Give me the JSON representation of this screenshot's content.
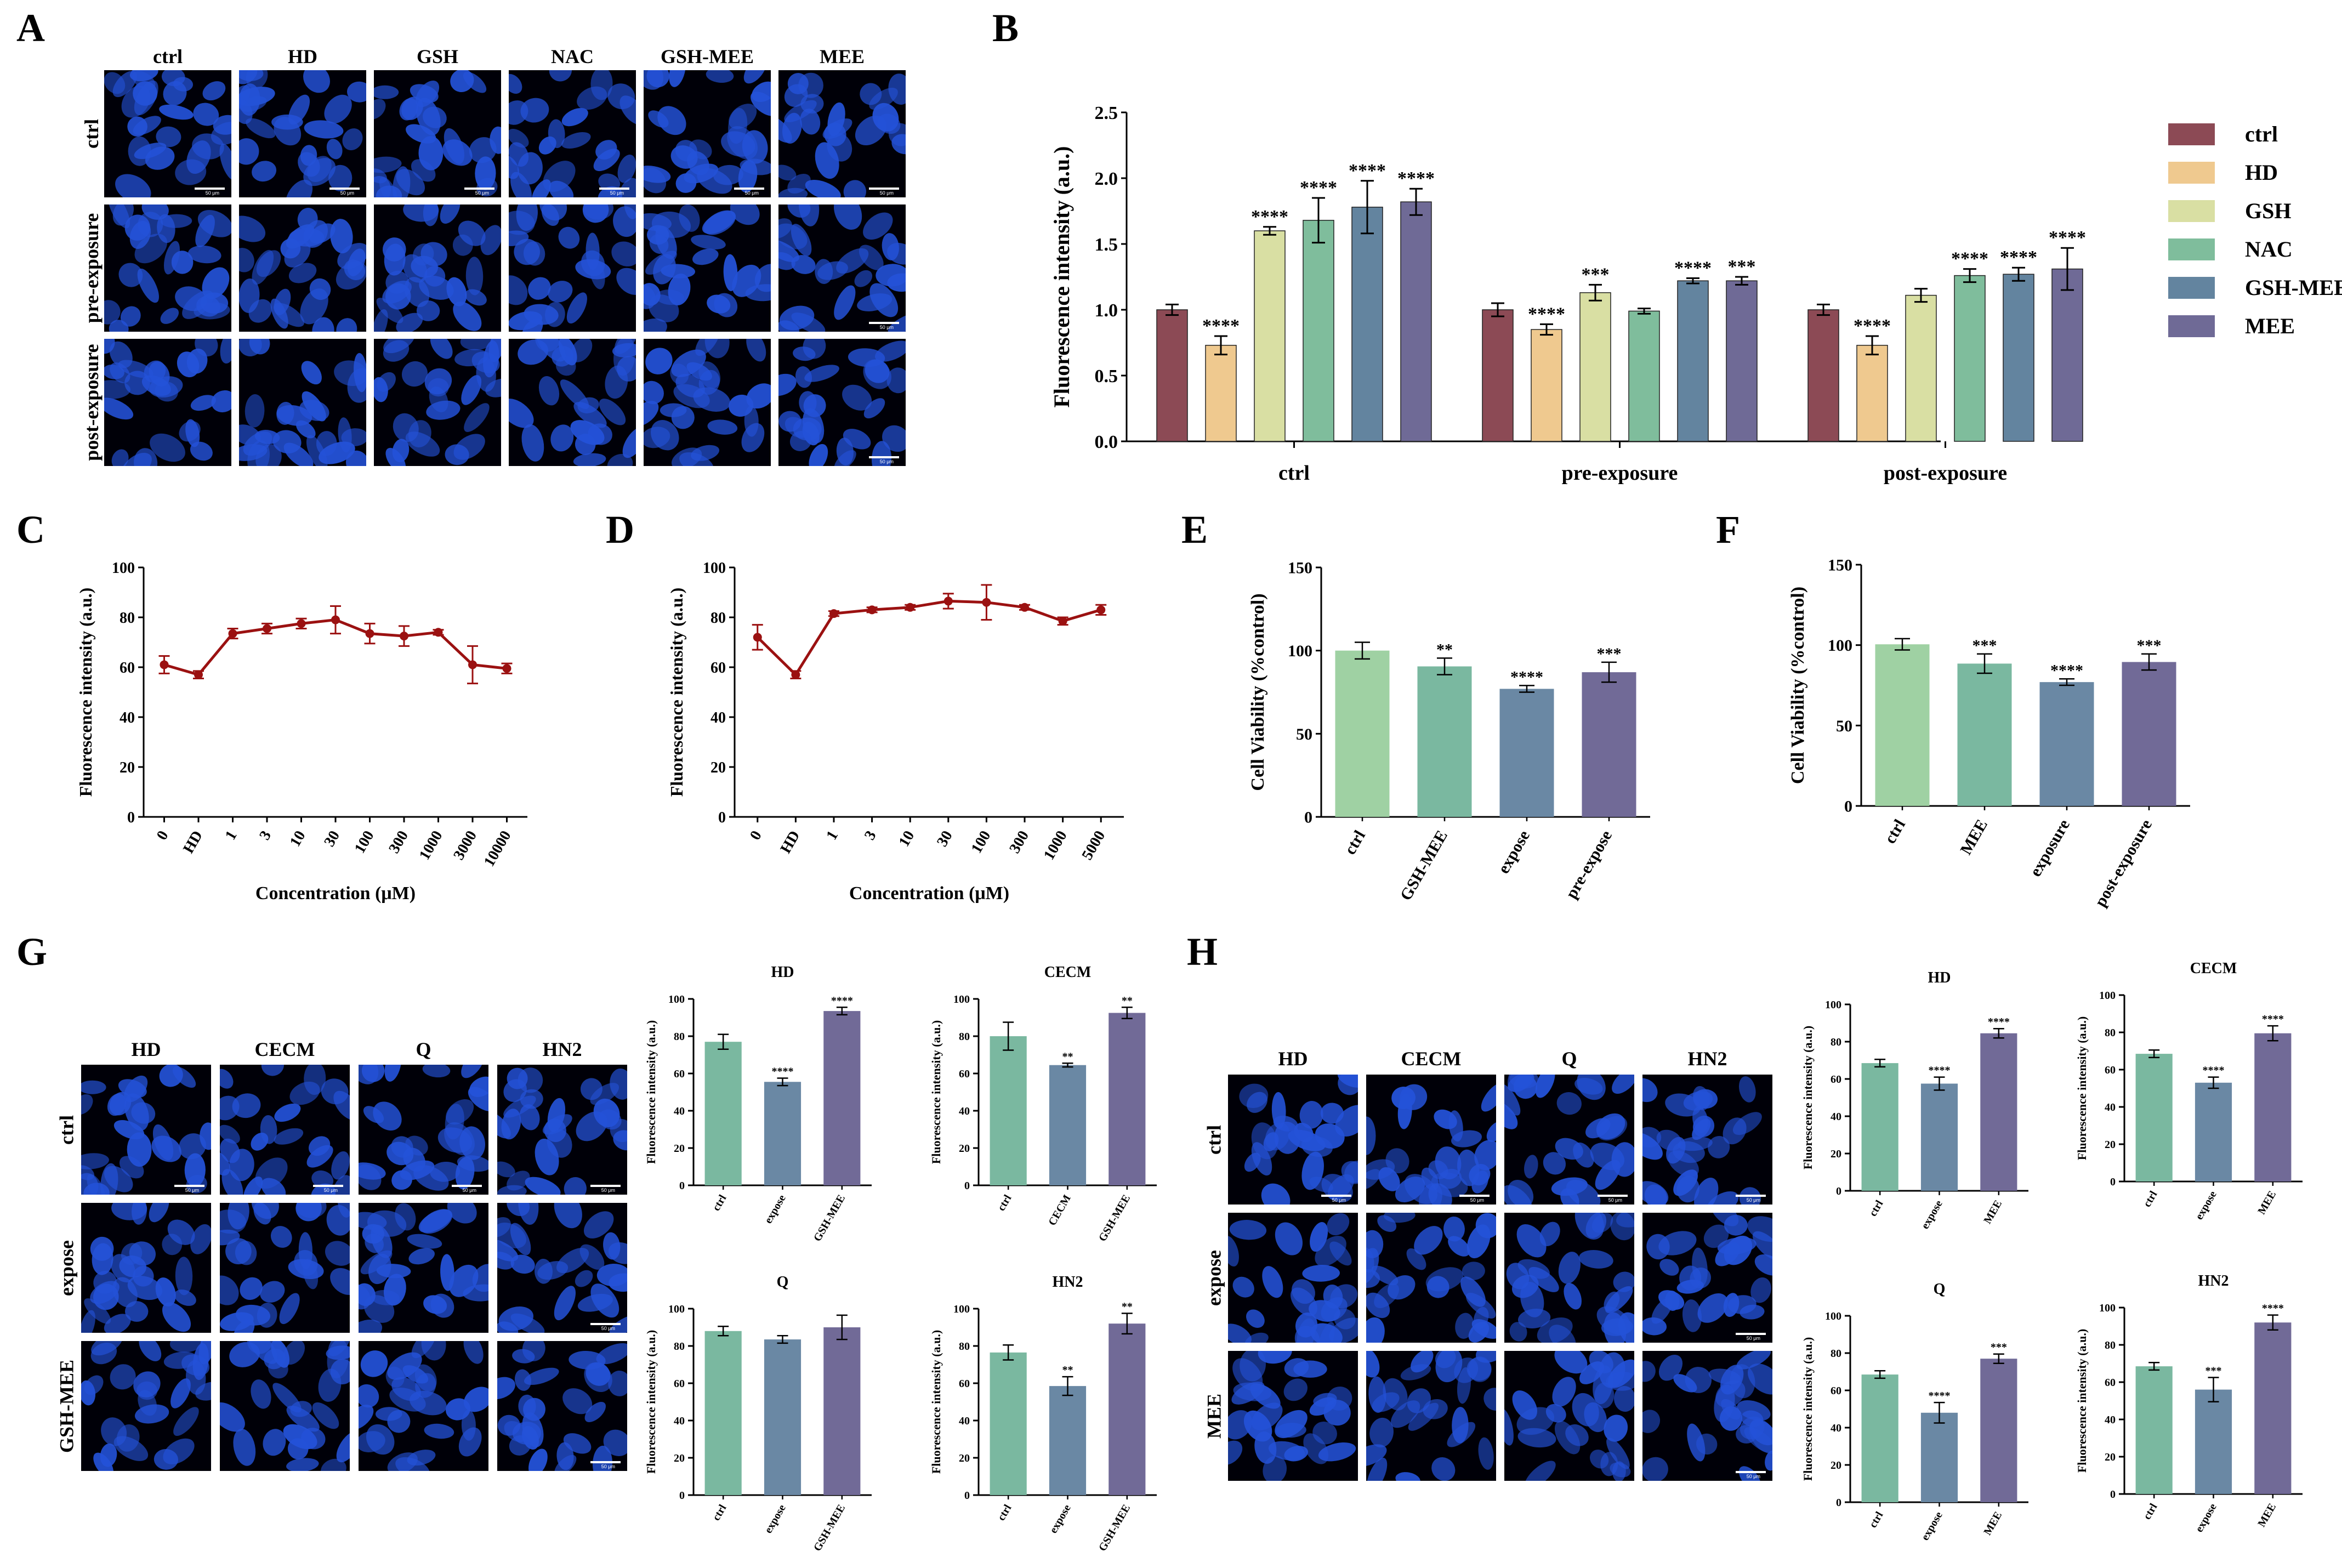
{
  "panels": {
    "A": "A",
    "B": "B",
    "C": "C",
    "D": "D",
    "E": "E",
    "F": "F",
    "G": "G",
    "H": "H"
  },
  "colors": {
    "ctrl": "#8c4a55",
    "HD": "#efc98f",
    "GSH": "#d9dfa3",
    "NAC": "#7fbd9c",
    "GSH_MEE": "#63849f",
    "MEE": "#6f6a96",
    "line": "#9b1111",
    "bar_ctrl_green": "#9fd1a3",
    "bar_teal": "#7ab8a0",
    "bar_blue": "#6a88a4",
    "bar_purple": "#716a97",
    "cell_blue": "#2452d8"
  },
  "micro_A": {
    "col_labels": [
      "ctrl",
      "HD",
      "GSH",
      "NAC",
      "GSH-MEE",
      "MEE"
    ],
    "row_labels": [
      "ctrl",
      "pre-exposure",
      "post-exposure"
    ],
    "scale_label": "50 μm"
  },
  "micro_G": {
    "col_labels": [
      "HD",
      "CECM",
      "Q",
      "HN2"
    ],
    "row_labels": [
      "ctrl",
      "expose",
      "GSH-MEE"
    ],
    "scale_label": "50 μm"
  },
  "micro_H": {
    "col_labels": [
      "HD",
      "CECM",
      "Q",
      "HN2"
    ],
    "row_labels": [
      "ctrl",
      "expose",
      "MEE"
    ],
    "scale_label": "50 μm"
  },
  "chart_data": [
    {
      "id": "B",
      "type": "bar",
      "ylabel": "Fluorescence intensity (a.u.)",
      "ylim": [
        0,
        2.5
      ],
      "yticks": [
        "0.0",
        "0.5",
        "1.0",
        "1.5",
        "2.0",
        "2.5"
      ],
      "categories": [
        "ctrl",
        "pre-exposure",
        "post-exposure"
      ],
      "legend": [
        "ctrl",
        "HD",
        "GSH",
        "NAC",
        "GSH-MEE",
        "MEE"
      ],
      "series": [
        {
          "name": "ctrl",
          "values": [
            1.0,
            1.0,
            1.0
          ],
          "err": [
            0.04,
            0.05,
            0.04
          ],
          "sig": [
            "",
            "",
            ""
          ]
        },
        {
          "name": "HD",
          "values": [
            0.73,
            0.85,
            0.73
          ],
          "err": [
            0.07,
            0.04,
            0.07
          ],
          "sig": [
            "****",
            "****",
            "****"
          ]
        },
        {
          "name": "GSH",
          "values": [
            1.6,
            1.13,
            1.11
          ],
          "err": [
            0.03,
            0.06,
            0.05
          ],
          "sig": [
            "****",
            "***",
            ""
          ]
        },
        {
          "name": "NAC",
          "values": [
            1.68,
            0.99,
            1.26
          ],
          "err": [
            0.17,
            0.02,
            0.05
          ],
          "sig": [
            "****",
            "",
            "****"
          ]
        },
        {
          "name": "GSH-MEE",
          "values": [
            1.78,
            1.22,
            1.27
          ],
          "err": [
            0.2,
            0.02,
            0.05
          ],
          "sig": [
            "****",
            "****",
            "****"
          ]
        },
        {
          "name": "MEE",
          "values": [
            1.82,
            1.22,
            1.31
          ],
          "err": [
            0.1,
            0.03,
            0.16
          ],
          "sig": [
            "****",
            "***",
            "****"
          ]
        }
      ]
    },
    {
      "id": "C",
      "type": "line",
      "xlabel": "Concentration (μM)",
      "ylabel": "Fluorescence intensity (a.u.)",
      "ylim": [
        0,
        100
      ],
      "yticks": [
        "0",
        "20",
        "40",
        "60",
        "80",
        "100"
      ],
      "categories": [
        "0",
        "HD",
        "1",
        "3",
        "10",
        "30",
        "100",
        "300",
        "1000",
        "3000",
        "10000"
      ],
      "values": [
        61,
        57,
        73.5,
        75.5,
        77.5,
        79,
        73.5,
        72.5,
        74,
        61,
        59.5
      ],
      "err": [
        3.5,
        1.5,
        2,
        2,
        2,
        5.5,
        4,
        4,
        1,
        7.5,
        2
      ]
    },
    {
      "id": "D",
      "type": "line",
      "xlabel": "Concentration (μM)",
      "ylabel": "Fluorescence intensity (a.u.)",
      "ylim": [
        0,
        100
      ],
      "yticks": [
        "0",
        "20",
        "40",
        "60",
        "80",
        "100"
      ],
      "categories": [
        "0",
        "HD",
        "1",
        "3",
        "10",
        "30",
        "100",
        "300",
        "1000",
        "5000"
      ],
      "values": [
        72,
        57,
        81.5,
        83,
        84,
        86.5,
        86,
        84,
        78.5,
        83
      ],
      "err": [
        5,
        1.5,
        1,
        1,
        1,
        3,
        7,
        1,
        1.5,
        2
      ]
    },
    {
      "id": "E",
      "type": "bar",
      "ylabel": "Cell Viability (%control)",
      "ylim": [
        0,
        150
      ],
      "yticks": [
        "0",
        "50",
        "100",
        "150"
      ],
      "categories": [
        "ctrl",
        "GSH-MEE",
        "expose",
        "pre-expose"
      ],
      "values": [
        100,
        90.5,
        77,
        87
      ],
      "err": [
        5,
        5,
        2,
        6
      ],
      "sig": [
        "",
        "**",
        "****",
        "***"
      ],
      "colors": [
        "#9fd1a3",
        "#7ab8a0",
        "#6a88a4",
        "#716a97"
      ]
    },
    {
      "id": "F",
      "type": "bar",
      "ylabel": "Cell Viability (%control)",
      "ylim": [
        0,
        150
      ],
      "yticks": [
        "0",
        "50",
        "100",
        "150"
      ],
      "categories": [
        "ctrl",
        "MEE",
        "exposure",
        "post-exposure"
      ],
      "values": [
        100.5,
        88.5,
        77,
        89.5
      ],
      "err": [
        3.5,
        6,
        2,
        5
      ],
      "sig": [
        "",
        "***",
        "****",
        "***"
      ],
      "colors": [
        "#9fd1a3",
        "#7ab8a0",
        "#6a88a4",
        "#716a97"
      ]
    },
    {
      "id": "G1",
      "type": "bar",
      "title": "HD",
      "ylabel": "Fluorescence intensity (a.u.)",
      "ylim": [
        0,
        100
      ],
      "yticks": [
        "0",
        "20",
        "40",
        "60",
        "80",
        "100"
      ],
      "categories": [
        "ctrl",
        "expose",
        "GSH-MEE"
      ],
      "values": [
        77,
        55.5,
        93.5
      ],
      "err": [
        4,
        2,
        2
      ],
      "sig": [
        "",
        "****",
        "****"
      ],
      "colors": [
        "#7ab8a0",
        "#6a88a4",
        "#716a97"
      ]
    },
    {
      "id": "G2",
      "type": "bar",
      "title": "CECM",
      "ylabel": "Fluorescence intensity (a.u.)",
      "ylim": [
        0,
        100
      ],
      "yticks": [
        "0",
        "20",
        "40",
        "60",
        "80",
        "100"
      ],
      "categories": [
        "ctrl",
        "CECM",
        "GSH-MEE"
      ],
      "values": [
        80,
        64.5,
        92.5
      ],
      "err": [
        7.5,
        1,
        3
      ],
      "sig": [
        "",
        "**",
        "**"
      ],
      "colors": [
        "#7ab8a0",
        "#6a88a4",
        "#716a97"
      ]
    },
    {
      "id": "G3",
      "type": "bar",
      "title": "Q",
      "ylabel": "Fluorescence intensity (a.u.)",
      "ylim": [
        0,
        100
      ],
      "yticks": [
        "0",
        "20",
        "40",
        "60",
        "80",
        "100"
      ],
      "categories": [
        "ctrl",
        "expose",
        "GSH-MEE"
      ],
      "values": [
        88,
        83.5,
        90
      ],
      "err": [
        2.5,
        2,
        6.5
      ],
      "sig": [
        "",
        "",
        ""
      ],
      "colors": [
        "#7ab8a0",
        "#6a88a4",
        "#716a97"
      ]
    },
    {
      "id": "G4",
      "type": "bar",
      "title": "HN2",
      "ylabel": "Fluorescence intensity (a.u.)",
      "ylim": [
        0,
        100
      ],
      "yticks": [
        "0",
        "20",
        "40",
        "60",
        "80",
        "100"
      ],
      "categories": [
        "ctrl",
        "expose",
        "GSH-MEE"
      ],
      "values": [
        76.5,
        58.5,
        92
      ],
      "err": [
        4,
        5,
        5.5
      ],
      "sig": [
        "",
        "**",
        "**"
      ],
      "colors": [
        "#7ab8a0",
        "#6a88a4",
        "#716a97"
      ]
    },
    {
      "id": "H1",
      "type": "bar",
      "title": "HD",
      "ylabel": "Fluorescence intensity (a.u.)",
      "ylim": [
        0,
        100
      ],
      "yticks": [
        "0",
        "20",
        "40",
        "60",
        "80",
        "100"
      ],
      "categories": [
        "ctrl",
        "expose",
        "MEE"
      ],
      "values": [
        68.5,
        57.5,
        84.5
      ],
      "err": [
        2,
        3.5,
        2.5
      ],
      "sig": [
        "",
        "****",
        "****"
      ],
      "colors": [
        "#7ab8a0",
        "#6a88a4",
        "#716a97"
      ]
    },
    {
      "id": "H2",
      "type": "bar",
      "title": "CECM",
      "ylabel": "Fluorescence intensity (a.u.)",
      "ylim": [
        0,
        100
      ],
      "yticks": [
        "0",
        "20",
        "40",
        "60",
        "80",
        "100"
      ],
      "categories": [
        "ctrl",
        "expose",
        "MEE"
      ],
      "values": [
        68.5,
        53,
        79.5
      ],
      "err": [
        2,
        3,
        4
      ],
      "sig": [
        "",
        "****",
        "****"
      ],
      "colors": [
        "#7ab8a0",
        "#6a88a4",
        "#716a97"
      ]
    },
    {
      "id": "H3",
      "type": "bar",
      "title": "Q",
      "ylabel": "Fluorescence intensity (a.u.)",
      "ylim": [
        0,
        100
      ],
      "yticks": [
        "0",
        "20",
        "40",
        "60",
        "80",
        "100"
      ],
      "categories": [
        "ctrl",
        "expose",
        "MEE"
      ],
      "values": [
        68.5,
        48,
        77
      ],
      "err": [
        2,
        5.5,
        2.5
      ],
      "sig": [
        "",
        "****",
        "***"
      ],
      "colors": [
        "#7ab8a0",
        "#6a88a4",
        "#716a97"
      ]
    },
    {
      "id": "H4",
      "type": "bar",
      "title": "HN2",
      "ylabel": "Fluorescence intensity (a.u.)",
      "ylim": [
        0,
        100
      ],
      "yticks": [
        "0",
        "20",
        "40",
        "60",
        "80",
        "100"
      ],
      "categories": [
        "ctrl",
        "expose",
        "MEE"
      ],
      "values": [
        68.5,
        56,
        92
      ],
      "err": [
        2,
        6.5,
        4
      ],
      "sig": [
        "",
        "***",
        "****"
      ],
      "colors": [
        "#7ab8a0",
        "#6a88a4",
        "#716a97"
      ]
    }
  ]
}
